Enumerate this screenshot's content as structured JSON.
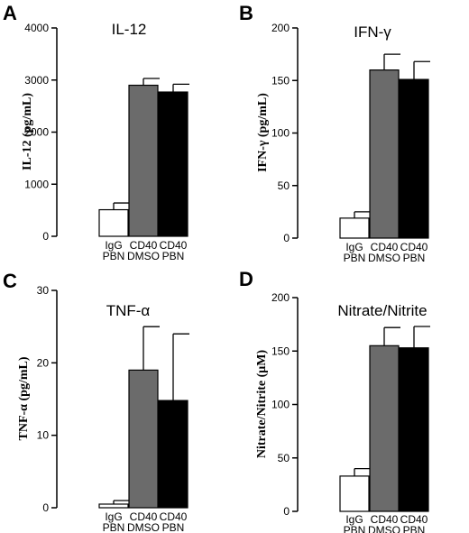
{
  "chart_data": [
    {
      "panel": "A",
      "type": "bar",
      "title": "IL-12",
      "ylabel": "IL-12 (pg/mL)",
      "ylim": [
        0,
        4000
      ],
      "yticks": [
        0,
        1000,
        2000,
        3000,
        4000
      ],
      "categories": [
        [
          "IgG",
          "PBN"
        ],
        [
          "CD40",
          "DMSO"
        ],
        [
          "CD40",
          "PBN"
        ]
      ],
      "values": [
        510,
        2900,
        2770
      ],
      "errors": [
        130,
        130,
        150
      ],
      "colors": [
        "#ffffff",
        "#6b6b6b",
        "#000000"
      ]
    },
    {
      "panel": "B",
      "type": "bar",
      "title": "IFN-γ",
      "ylabel": "IFN-γ (pg/mL)",
      "ylim": [
        0,
        200
      ],
      "yticks": [
        0,
        50,
        100,
        150,
        200
      ],
      "categories": [
        [
          "IgG",
          "PBN"
        ],
        [
          "CD40",
          "DMSO"
        ],
        [
          "CD40",
          "PBN"
        ]
      ],
      "values": [
        19,
        160,
        151
      ],
      "errors": [
        6,
        15,
        17
      ],
      "colors": [
        "#ffffff",
        "#6b6b6b",
        "#000000"
      ]
    },
    {
      "panel": "C",
      "type": "bar",
      "title": "TNF-α",
      "ylabel": "TNF-α (pg/mL)",
      "ylim": [
        0,
        30
      ],
      "yticks": [
        0,
        10,
        20,
        30
      ],
      "categories": [
        [
          "IgG",
          "PBN"
        ],
        [
          "CD40",
          "DMSO"
        ],
        [
          "CD40",
          "PBN"
        ]
      ],
      "values": [
        0.5,
        19,
        14.8
      ],
      "errors": [
        0.5,
        6,
        9.2
      ],
      "colors": [
        "#ffffff",
        "#6b6b6b",
        "#000000"
      ]
    },
    {
      "panel": "D",
      "type": "bar",
      "title": "Nitrate/Nitrite",
      "ylabel": "Nitrate/Nitrite (μM)",
      "ylim": [
        0,
        200
      ],
      "yticks": [
        0,
        50,
        100,
        150,
        200
      ],
      "categories": [
        [
          "IgG",
          "PBN"
        ],
        [
          "CD40",
          "DMSO"
        ],
        [
          "CD40",
          "PBN"
        ]
      ],
      "values": [
        33,
        155,
        153
      ],
      "errors": [
        7,
        17,
        20
      ],
      "colors": [
        "#ffffff",
        "#6b6b6b",
        "#000000"
      ]
    }
  ]
}
